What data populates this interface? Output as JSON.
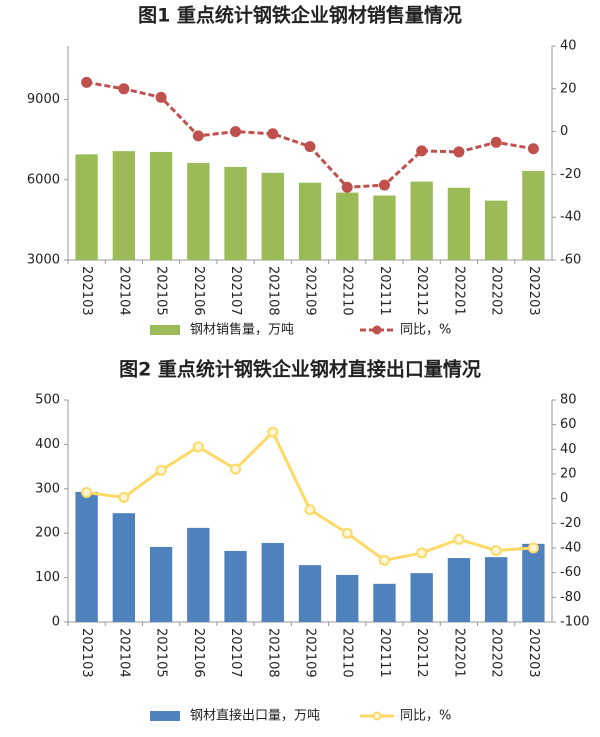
{
  "chart_data": [
    {
      "type": "combo",
      "title": "图1  重点统计钢铁企业钢材销售量情况",
      "categories": [
        "202103",
        "202104",
        "202105",
        "202106",
        "202107",
        "202108",
        "202109",
        "202110",
        "202111",
        "202112",
        "202201",
        "202202",
        "202203"
      ],
      "series": [
        {
          "name": "钢材销售量，万吨",
          "type": "bar",
          "color": "#9bbb59",
          "values": [
            6950,
            7070,
            7040,
            6630,
            6480,
            6260,
            5890,
            5520,
            5410,
            5930,
            5700,
            5220,
            6330
          ]
        },
        {
          "name": "同比，%",
          "type": "line",
          "axis": "y2",
          "color": "#c0504d",
          "dashed": true,
          "values": [
            23,
            20,
            16,
            -2,
            0,
            -1,
            -7,
            -26,
            -25,
            -9,
            -9.5,
            -5,
            -8
          ]
        }
      ],
      "ylim": [
        3000,
        11000
      ],
      "yticks": [
        3000,
        6000,
        9000
      ],
      "y2lim": [
        -60,
        40
      ],
      "y2ticks": [
        -60,
        -40,
        -20,
        0,
        20,
        40
      ]
    },
    {
      "type": "combo",
      "title": "图2  重点统计钢铁企业钢材直接出口量情况",
      "categories": [
        "202103",
        "202104",
        "202105",
        "202106",
        "202107",
        "202108",
        "202109",
        "202110",
        "202111",
        "202112",
        "202201",
        "202202",
        "202203"
      ],
      "series": [
        {
          "name": "钢材直接出口量，万吨",
          "type": "bar",
          "color": "#4f81bd",
          "values": [
            293,
            245,
            169,
            212,
            160,
            178,
            128,
            106,
            86,
            110,
            144,
            146,
            176
          ]
        },
        {
          "name": "同比，%",
          "type": "line",
          "axis": "y2",
          "color": "#ffd966",
          "dashed": false,
          "values": [
            5,
            1,
            23,
            42,
            24,
            54,
            -9,
            -28,
            -50,
            -44,
            -33,
            -42,
            -40
          ]
        }
      ],
      "ylim": [
        0,
        500
      ],
      "yticks": [
        0,
        100,
        200,
        300,
        400,
        500
      ],
      "y2lim": [
        -100,
        80
      ],
      "y2ticks": [
        -100,
        -80,
        -60,
        -40,
        -20,
        0,
        20,
        40,
        60,
        80
      ]
    }
  ]
}
